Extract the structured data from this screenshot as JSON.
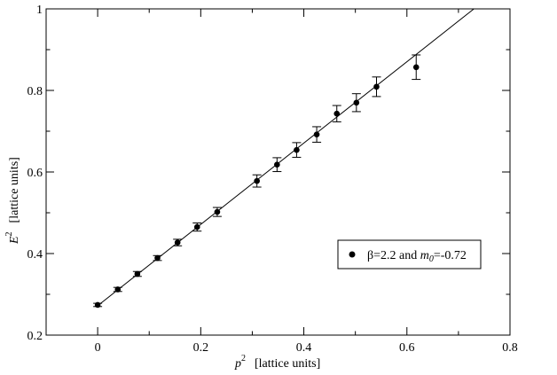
{
  "chart_data": {
    "type": "scatter",
    "xlabel": {
      "base": "p",
      "sup": "2",
      "units": "[lattice units]"
    },
    "ylabel": {
      "base": "E",
      "sup": "2",
      "units": "[lattice units]"
    },
    "xlim": [
      -0.1,
      0.8
    ],
    "ylim": [
      0.2,
      1.0
    ],
    "xticks": [
      0,
      0.2,
      0.4,
      0.6,
      0.8
    ],
    "xtick_labels": [
      "0",
      "0.2",
      "0.4",
      "0.6",
      "0.8"
    ],
    "yticks": [
      0.2,
      0.4,
      0.6,
      0.8,
      1.0
    ],
    "ytick_labels": [
      "0.2",
      "0.4",
      "0.6",
      "0.8",
      "1"
    ],
    "grid": false,
    "legend_position": "center-right",
    "series": [
      {
        "name": "β=2.2 and m0=-0.72",
        "legend_parts": {
          "prefix": "β=2.2 and ",
          "var": "m",
          "sub": "0",
          "suffix": "=-0.72"
        },
        "color": "#000000",
        "marker": "circle",
        "x": [
          0.0,
          0.039,
          0.077,
          0.116,
          0.155,
          0.193,
          0.232,
          0.309,
          0.348,
          0.386,
          0.425,
          0.464,
          0.502,
          0.541,
          0.618
        ],
        "y": [
          0.274,
          0.312,
          0.35,
          0.389,
          0.427,
          0.465,
          0.502,
          0.578,
          0.618,
          0.654,
          0.692,
          0.743,
          0.77,
          0.809,
          0.857
        ],
        "yerr": [
          0.004,
          0.005,
          0.006,
          0.006,
          0.008,
          0.01,
          0.011,
          0.015,
          0.017,
          0.018,
          0.019,
          0.02,
          0.022,
          0.024,
          0.03
        ]
      }
    ],
    "fit_line": {
      "x": [
        0.0,
        0.73
      ],
      "y": [
        0.272,
        1.0
      ],
      "color": "#000000"
    }
  }
}
